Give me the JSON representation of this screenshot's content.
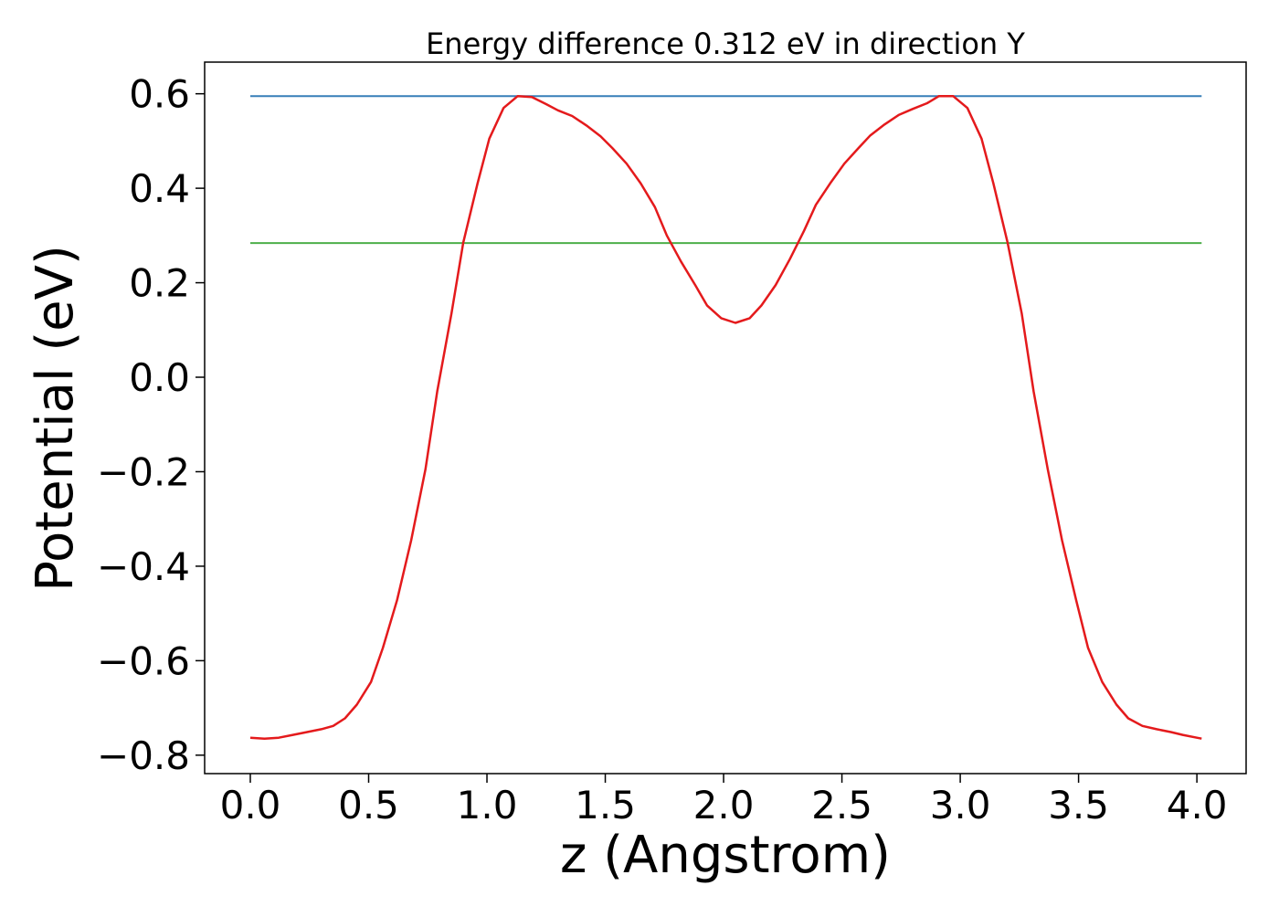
{
  "chart_data": {
    "type": "line",
    "title": "Energy difference 0.312 eV in direction Y",
    "xlabel": "z (Angstrom)",
    "ylabel": "Potential (eV)",
    "xlim": [
      -0.193,
      4.208
    ],
    "ylim": [
      -0.839,
      0.667
    ],
    "xticks": [
      0.0,
      0.5,
      1.0,
      1.5,
      2.0,
      2.5,
      3.0,
      3.5,
      4.0
    ],
    "xtick_labels": [
      "0.0",
      "0.5",
      "1.0",
      "1.5",
      "2.0",
      "2.5",
      "3.0",
      "3.5",
      "4.0"
    ],
    "yticks": [
      0.6,
      0.4,
      0.2,
      0.0,
      -0.2,
      -0.4,
      -0.6,
      -0.8
    ],
    "ytick_labels": [
      "0.6",
      "0.4",
      "0.2",
      "0.0",
      "−0.2",
      "−0.4",
      "−0.6",
      "−0.8"
    ],
    "grid": false,
    "hlines": [
      {
        "y": 0.595,
        "x_range": [
          0.0,
          4.02
        ],
        "color": "#377eb8"
      },
      {
        "y": 0.284,
        "x_range": [
          0.0,
          4.02
        ],
        "color": "#4daf4a"
      }
    ],
    "series": [
      {
        "color": "#e41a1c",
        "x": [
          0.0,
          0.06,
          0.12,
          0.18,
          0.24,
          0.3,
          0.35,
          0.4,
          0.45,
          0.51,
          0.56,
          0.62,
          0.68,
          0.74,
          0.79,
          0.85,
          0.9,
          0.96,
          1.01,
          1.07,
          1.13,
          1.19,
          1.25,
          1.3,
          1.36,
          1.42,
          1.48,
          1.53,
          1.59,
          1.65,
          1.71,
          1.76,
          1.82,
          1.88,
          1.93,
          1.99,
          2.05,
          2.11,
          2.16,
          2.22,
          2.28,
          2.34,
          2.39,
          2.45,
          2.51,
          2.57,
          2.62,
          2.68,
          2.74,
          2.8,
          2.86,
          2.91,
          2.97,
          3.03,
          3.09,
          3.14,
          3.2,
          3.26,
          3.31,
          3.37,
          3.43,
          3.49,
          3.54,
          3.6,
          3.66,
          3.71,
          3.77,
          3.83,
          3.89,
          3.94,
          4.0,
          4.02
        ],
        "y": [
          -0.763,
          -0.765,
          -0.763,
          -0.757,
          -0.751,
          -0.745,
          -0.738,
          -0.722,
          -0.693,
          -0.645,
          -0.573,
          -0.472,
          -0.345,
          -0.195,
          -0.03,
          0.135,
          0.285,
          0.41,
          0.505,
          0.57,
          0.595,
          0.593,
          0.578,
          0.565,
          0.553,
          0.533,
          0.51,
          0.485,
          0.452,
          0.41,
          0.36,
          0.3,
          0.245,
          0.195,
          0.152,
          0.125,
          0.115,
          0.125,
          0.152,
          0.195,
          0.25,
          0.31,
          0.365,
          0.41,
          0.452,
          0.485,
          0.512,
          0.535,
          0.555,
          0.568,
          0.58,
          0.595,
          0.595,
          0.57,
          0.505,
          0.41,
          0.285,
          0.135,
          -0.03,
          -0.195,
          -0.345,
          -0.472,
          -0.573,
          -0.645,
          -0.693,
          -0.722,
          -0.738,
          -0.745,
          -0.751,
          -0.757,
          -0.763,
          -0.765
        ]
      }
    ]
  }
}
